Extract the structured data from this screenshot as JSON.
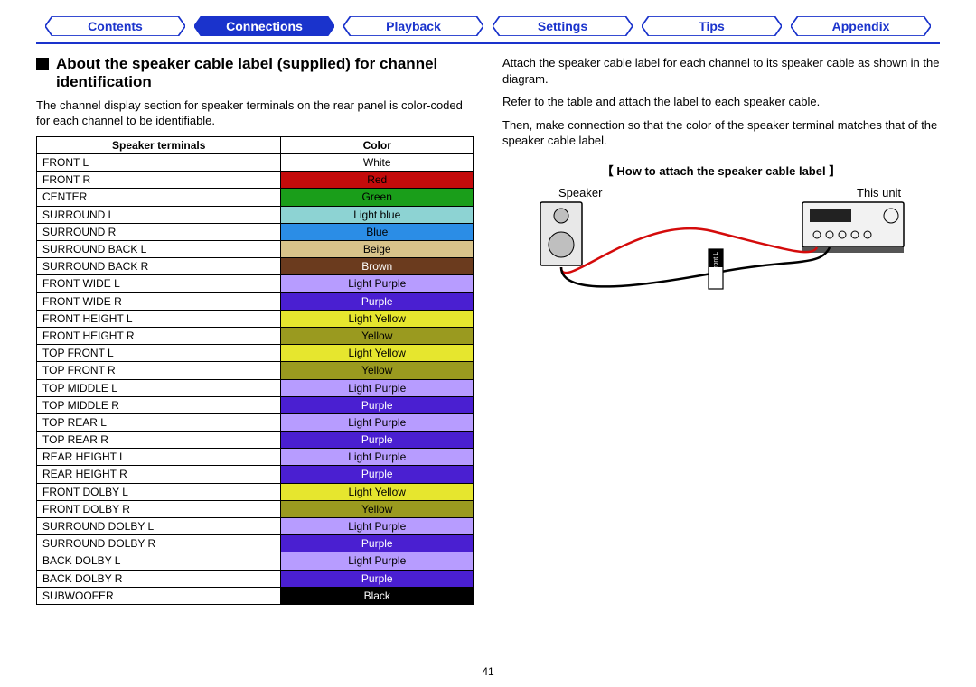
{
  "nav": {
    "tabs": [
      {
        "label": "Contents",
        "active": false
      },
      {
        "label": "Connections",
        "active": true
      },
      {
        "label": "Playback",
        "active": false
      },
      {
        "label": "Settings",
        "active": false
      },
      {
        "label": "Tips",
        "active": false
      },
      {
        "label": "Appendix",
        "active": false
      }
    ],
    "outline_color": "#1a33cc",
    "active_fill": "#1a33cc",
    "active_text_color": "#ffffff",
    "inactive_text_color": "#1a33cc"
  },
  "left": {
    "heading": "About the speaker cable label (supplied) for channel identification",
    "paragraph": "The channel display section for speaker terminals on the rear panel is color-coded for each channel to be identifiable.",
    "table": {
      "headers": [
        "Speaker terminals",
        "Color"
      ],
      "rows": [
        {
          "terminal": "FRONT L",
          "color_label": "White",
          "bg": "#ffffff",
          "fg": "#000000"
        },
        {
          "terminal": "FRONT R",
          "color_label": "Red",
          "bg": "#c40b0b",
          "fg": "#000000"
        },
        {
          "terminal": "CENTER",
          "color_label": "Green",
          "bg": "#1a9e1a",
          "fg": "#000000"
        },
        {
          "terminal": "SURROUND L",
          "color_label": "Light blue",
          "bg": "#8dd3d3",
          "fg": "#000000"
        },
        {
          "terminal": "SURROUND R",
          "color_label": "Blue",
          "bg": "#2b8de6",
          "fg": "#000000"
        },
        {
          "terminal": "SURROUND BACK L",
          "color_label": "Beige",
          "bg": "#d8c38a",
          "fg": "#000000"
        },
        {
          "terminal": "SURROUND BACK R",
          "color_label": "Brown",
          "bg": "#6b3b1e",
          "fg": "#ffffff"
        },
        {
          "terminal": "FRONT WIDE L",
          "color_label": "Light Purple",
          "bg": "#b79cff",
          "fg": "#000000"
        },
        {
          "terminal": "FRONT WIDE R",
          "color_label": "Purple",
          "bg": "#4a1fd1",
          "fg": "#ffffff"
        },
        {
          "terminal": "FRONT HEIGHT L",
          "color_label": "Light Yellow",
          "bg": "#e6e62e",
          "fg": "#000000"
        },
        {
          "terminal": "FRONT HEIGHT R",
          "color_label": "Yellow",
          "bg": "#9a9a1f",
          "fg": "#000000"
        },
        {
          "terminal": "TOP FRONT L",
          "color_label": "Light Yellow",
          "bg": "#e6e62e",
          "fg": "#000000"
        },
        {
          "terminal": "TOP FRONT R",
          "color_label": "Yellow",
          "bg": "#9a9a1f",
          "fg": "#000000"
        },
        {
          "terminal": "TOP MIDDLE L",
          "color_label": "Light Purple",
          "bg": "#b79cff",
          "fg": "#000000"
        },
        {
          "terminal": "TOP MIDDLE R",
          "color_label": "Purple",
          "bg": "#4a1fd1",
          "fg": "#ffffff"
        },
        {
          "terminal": "TOP REAR L",
          "color_label": "Light Purple",
          "bg": "#b79cff",
          "fg": "#000000"
        },
        {
          "terminal": "TOP REAR R",
          "color_label": "Purple",
          "bg": "#4a1fd1",
          "fg": "#ffffff"
        },
        {
          "terminal": "REAR HEIGHT L",
          "color_label": "Light Purple",
          "bg": "#b79cff",
          "fg": "#000000"
        },
        {
          "terminal": "REAR HEIGHT R",
          "color_label": "Purple",
          "bg": "#4a1fd1",
          "fg": "#ffffff"
        },
        {
          "terminal": "FRONT DOLBY L",
          "color_label": "Light Yellow",
          "bg": "#e6e62e",
          "fg": "#000000"
        },
        {
          "terminal": "FRONT DOLBY R",
          "color_label": "Yellow",
          "bg": "#9a9a1f",
          "fg": "#000000"
        },
        {
          "terminal": "SURROUND DOLBY L",
          "color_label": "Light Purple",
          "bg": "#b79cff",
          "fg": "#000000"
        },
        {
          "terminal": "SURROUND DOLBY R",
          "color_label": "Purple",
          "bg": "#4a1fd1",
          "fg": "#ffffff"
        },
        {
          "terminal": "BACK DOLBY L",
          "color_label": "Light Purple",
          "bg": "#b79cff",
          "fg": "#000000"
        },
        {
          "terminal": "BACK DOLBY R",
          "color_label": "Purple",
          "bg": "#4a1fd1",
          "fg": "#ffffff"
        },
        {
          "terminal": "SUBWOOFER",
          "color_label": "Black",
          "bg": "#000000",
          "fg": "#ffffff"
        }
      ]
    }
  },
  "right": {
    "paragraphs": [
      "Attach the speaker cable label for each channel to its speaker cable as shown in the diagram.",
      "Refer to the table and attach the label to each speaker cable.",
      "Then, make connection so that the color of the speaker terminal matches that of the speaker cable label."
    ],
    "diagram_title": "【 How to attach the speaker cable label 】",
    "diagram": {
      "speaker_label": "Speaker",
      "unit_label": "This unit",
      "tag_label": "Front L",
      "wire_red": "#d40b0b",
      "wire_black": "#000000",
      "outline": "#000000",
      "fill_gray": "#bfbfbf"
    }
  },
  "page_number": "41"
}
